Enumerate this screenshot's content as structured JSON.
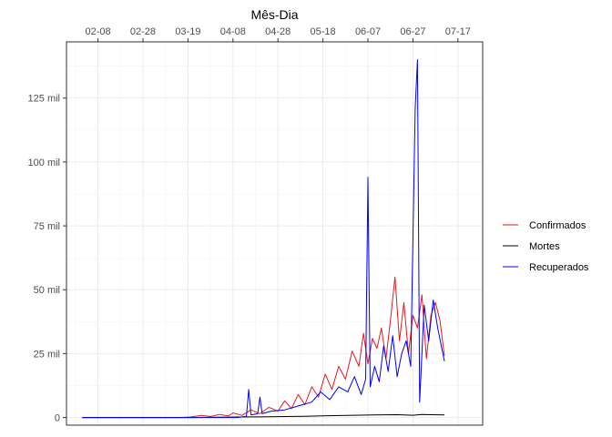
{
  "chart_data": {
    "type": "line",
    "xlabel": "Mês-Dia",
    "ylabel": "",
    "x_axis_position": "top",
    "x_ticks": [
      "02-08",
      "02-28",
      "03-19",
      "04-08",
      "04-28",
      "05-18",
      "06-07",
      "06-27",
      "07-17"
    ],
    "x_tick_dates": [
      "2020-02-08",
      "2020-02-28",
      "2020-03-19",
      "2020-04-08",
      "2020-04-28",
      "2020-05-18",
      "2020-06-07",
      "2020-06-27",
      "2020-07-17"
    ],
    "y_ticks": [
      {
        "value": 0,
        "label": "0"
      },
      {
        "value": 25000,
        "label": "25 mil"
      },
      {
        "value": 50000,
        "label": "50 mil"
      },
      {
        "value": 75000,
        "label": "75 mil"
      },
      {
        "value": 100000,
        "label": "100 mil"
      },
      {
        "value": 125000,
        "label": "125 mil"
      }
    ],
    "xlim": [
      "2020-01-25",
      "2020-07-28"
    ],
    "ylim": [
      -3000,
      147000
    ],
    "grid": true,
    "legend_position": "right",
    "series": [
      {
        "name": "Confirmados",
        "color": "#e41a1c",
        "points": [
          [
            "2020-02-01",
            0
          ],
          [
            "2020-03-15",
            0
          ],
          [
            "2020-03-20",
            200
          ],
          [
            "2020-03-25",
            800
          ],
          [
            "2020-03-29",
            400
          ],
          [
            "2020-04-02",
            1200
          ],
          [
            "2020-04-06",
            600
          ],
          [
            "2020-04-08",
            1800
          ],
          [
            "2020-04-12",
            800
          ],
          [
            "2020-04-16",
            3000
          ],
          [
            "2020-04-20",
            1500
          ],
          [
            "2020-04-24",
            4000
          ],
          [
            "2020-04-28",
            2500
          ],
          [
            "2020-05-01",
            6500
          ],
          [
            "2020-05-04",
            3500
          ],
          [
            "2020-05-07",
            9000
          ],
          [
            "2020-05-10",
            5000
          ],
          [
            "2020-05-13",
            12000
          ],
          [
            "2020-05-16",
            8000
          ],
          [
            "2020-05-19",
            17000
          ],
          [
            "2020-05-22",
            11000
          ],
          [
            "2020-05-25",
            20000
          ],
          [
            "2020-05-28",
            15000
          ],
          [
            "2020-05-31",
            26000
          ],
          [
            "2020-06-03",
            20000
          ],
          [
            "2020-06-05",
            33000
          ],
          [
            "2020-06-07",
            21000
          ],
          [
            "2020-06-09",
            31000
          ],
          [
            "2020-06-11",
            27000
          ],
          [
            "2020-06-13",
            35000
          ],
          [
            "2020-06-15",
            23000
          ],
          [
            "2020-06-17",
            38000
          ],
          [
            "2020-06-19",
            55000
          ],
          [
            "2020-06-21",
            30000
          ],
          [
            "2020-06-23",
            45000
          ],
          [
            "2020-06-25",
            25000
          ],
          [
            "2020-06-27",
            40000
          ],
          [
            "2020-06-29",
            35000
          ],
          [
            "2020-07-01",
            48000
          ],
          [
            "2020-07-03",
            23000
          ],
          [
            "2020-07-05",
            40000
          ],
          [
            "2020-07-07",
            45000
          ],
          [
            "2020-07-09",
            38000
          ],
          [
            "2020-07-11",
            24000
          ]
        ]
      },
      {
        "name": "Mortes",
        "color": "#000000",
        "points": [
          [
            "2020-02-01",
            0
          ],
          [
            "2020-03-20",
            0
          ],
          [
            "2020-04-01",
            100
          ],
          [
            "2020-04-10",
            200
          ],
          [
            "2020-04-20",
            250
          ],
          [
            "2020-05-01",
            400
          ],
          [
            "2020-05-10",
            500
          ],
          [
            "2020-05-20",
            700
          ],
          [
            "2020-06-01",
            900
          ],
          [
            "2020-06-10",
            1000
          ],
          [
            "2020-06-20",
            1100
          ],
          [
            "2020-06-27",
            900
          ],
          [
            "2020-07-01",
            1200
          ],
          [
            "2020-07-05",
            1100
          ],
          [
            "2020-07-11",
            1000
          ]
        ]
      },
      {
        "name": "Recuperados",
        "color": "#0000ff",
        "points": [
          [
            "2020-02-01",
            0
          ],
          [
            "2020-04-10",
            0
          ],
          [
            "2020-04-14",
            500
          ],
          [
            "2020-04-15",
            11000
          ],
          [
            "2020-04-16",
            1000
          ],
          [
            "2020-04-19",
            1500
          ],
          [
            "2020-04-20",
            8000
          ],
          [
            "2020-04-21",
            1500
          ],
          [
            "2020-04-25",
            2500
          ],
          [
            "2020-05-01",
            3000
          ],
          [
            "2020-05-05",
            4000
          ],
          [
            "2020-05-09",
            5000
          ],
          [
            "2020-05-13",
            6000
          ],
          [
            "2020-05-17",
            10000
          ],
          [
            "2020-05-21",
            7000
          ],
          [
            "2020-05-25",
            12000
          ],
          [
            "2020-05-29",
            10000
          ],
          [
            "2020-06-01",
            16000
          ],
          [
            "2020-06-04",
            9000
          ],
          [
            "2020-06-06",
            15000
          ],
          [
            "2020-06-07",
            94000
          ],
          [
            "2020-06-08",
            12000
          ],
          [
            "2020-06-10",
            20000
          ],
          [
            "2020-06-12",
            14000
          ],
          [
            "2020-06-14",
            28000
          ],
          [
            "2020-06-16",
            18000
          ],
          [
            "2020-06-18",
            32000
          ],
          [
            "2020-06-20",
            16000
          ],
          [
            "2020-06-22",
            25000
          ],
          [
            "2020-06-24",
            30000
          ],
          [
            "2020-06-26",
            20000
          ],
          [
            "2020-06-28",
            121000
          ],
          [
            "2020-06-29",
            140000
          ],
          [
            "2020-06-30",
            6000
          ],
          [
            "2020-07-02",
            44000
          ],
          [
            "2020-07-04",
            30000
          ],
          [
            "2020-07-06",
            46000
          ],
          [
            "2020-07-08",
            35000
          ],
          [
            "2020-07-11",
            22000
          ]
        ]
      }
    ]
  }
}
